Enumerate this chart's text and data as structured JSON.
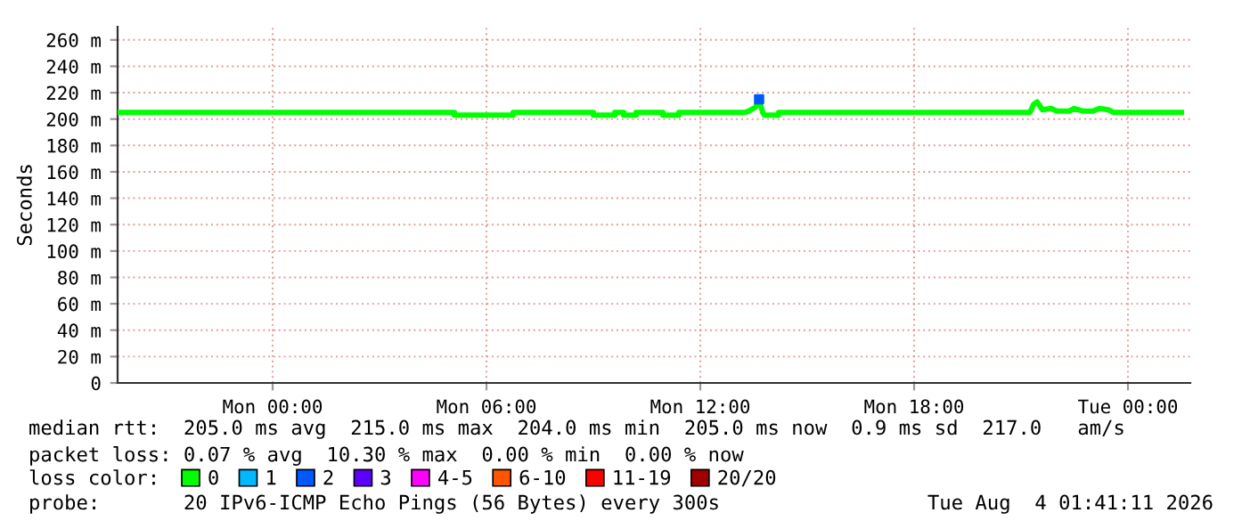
{
  "chart_data": {
    "type": "line",
    "ylabel": "Seconds",
    "x": [
      "2026-08-02T19:39",
      "2026-08-03T05:06",
      "2026-08-03T05:06",
      "2026-08-03T06:45",
      "2026-08-03T06:45",
      "2026-08-03T09:00",
      "2026-08-03T09:00",
      "2026-08-03T09:36",
      "2026-08-03T09:36",
      "2026-08-03T09:51",
      "2026-08-03T09:51",
      "2026-08-03T10:12",
      "2026-08-03T10:12",
      "2026-08-03T10:57",
      "2026-08-03T10:57",
      "2026-08-03T11:24",
      "2026-08-03T11:24",
      "2026-08-03T13:15",
      "2026-08-03T13:21",
      "2026-08-03T13:33",
      "2026-08-03T13:39",
      "2026-08-03T13:45",
      "2026-08-03T13:48",
      "2026-08-03T14:12",
      "2026-08-03T14:12",
      "2026-08-03T21:15",
      "2026-08-03T21:21",
      "2026-08-03T21:27",
      "2026-08-03T21:36",
      "2026-08-03T21:51",
      "2026-08-03T22:00",
      "2026-08-03T22:21",
      "2026-08-03T22:30",
      "2026-08-03T22:45",
      "2026-08-03T23:00",
      "2026-08-03T23:12",
      "2026-08-03T23:27",
      "2026-08-03T23:36",
      "2026-08-04T01:30"
    ],
    "series": [
      {
        "name": "0",
        "color": "#00ff00",
        "values": [
          205,
          205,
          203,
          203,
          205,
          205,
          203,
          203,
          205,
          205,
          203,
          203,
          205,
          205,
          203,
          203,
          205,
          205,
          206,
          209,
          215,
          205,
          203,
          203,
          205,
          205,
          211,
          213,
          207,
          208,
          206,
          206,
          208,
          206,
          206,
          208,
          207,
          205,
          205
        ]
      },
      {
        "name": "1",
        "color": "#00b8ff",
        "type": "scatter",
        "values": [
          null,
          null,
          null,
          null,
          null,
          null,
          null,
          null,
          null,
          null,
          null,
          null,
          null,
          null,
          null,
          null,
          null,
          null,
          null,
          null,
          null,
          null,
          null,
          null,
          null,
          null,
          null,
          null,
          null,
          null,
          null,
          null,
          null,
          null,
          null,
          null,
          null,
          null,
          null
        ]
      },
      {
        "name": "2",
        "color": "#0059ff",
        "type": "scatter",
        "marker": "square",
        "values": [
          null,
          null,
          null,
          null,
          null,
          null,
          null,
          null,
          null,
          null,
          null,
          null,
          null,
          null,
          null,
          null,
          null,
          null,
          null,
          null,
          215,
          null,
          null,
          null,
          null,
          null,
          null,
          null,
          null,
          null,
          null,
          null,
          null,
          null,
          null,
          null,
          null,
          null,
          null
        ]
      },
      {
        "name": "3",
        "color": "#5e00ff",
        "type": "scatter",
        "values": [
          null,
          null,
          null,
          null,
          null,
          null,
          null,
          null,
          null,
          null,
          null,
          null,
          null,
          null,
          null,
          null,
          null,
          null,
          null,
          null,
          null,
          null,
          null,
          null,
          null,
          null,
          null,
          null,
          null,
          null,
          null,
          null,
          null,
          null,
          null,
          null,
          null,
          null,
          null
        ]
      },
      {
        "name": "4-5",
        "color": "#ff00ff",
        "type": "scatter",
        "values": [
          null,
          null,
          null,
          null,
          null,
          null,
          null,
          null,
          null,
          null,
          null,
          null,
          null,
          null,
          null,
          null,
          null,
          null,
          null,
          null,
          null,
          null,
          null,
          null,
          null,
          null,
          null,
          null,
          null,
          null,
          null,
          null,
          null,
          null,
          null,
          null,
          null,
          null,
          null
        ]
      },
      {
        "name": "6-10",
        "color": "#ff5500",
        "type": "scatter",
        "values": [
          null,
          null,
          null,
          null,
          null,
          null,
          null,
          null,
          null,
          null,
          null,
          null,
          null,
          null,
          null,
          null,
          null,
          null,
          null,
          null,
          null,
          null,
          null,
          null,
          null,
          null,
          null,
          null,
          null,
          null,
          null,
          null,
          null,
          null,
          null,
          null,
          null,
          null,
          null
        ]
      },
      {
        "name": "11-19",
        "color": "#ff0000",
        "type": "scatter",
        "values": [
          null,
          null,
          null,
          null,
          null,
          null,
          null,
          null,
          null,
          null,
          null,
          null,
          null,
          null,
          null,
          null,
          null,
          null,
          null,
          null,
          null,
          null,
          null,
          null,
          null,
          null,
          null,
          null,
          null,
          null,
          null,
          null,
          null,
          null,
          null,
          null,
          null,
          null,
          null
        ]
      },
      {
        "name": "20/20",
        "color": "#a10000",
        "type": "scatter",
        "values": [
          null,
          null,
          null,
          null,
          null,
          null,
          null,
          null,
          null,
          null,
          null,
          null,
          null,
          null,
          null,
          null,
          null,
          null,
          null,
          null,
          null,
          null,
          null,
          null,
          null,
          null,
          null,
          null,
          null,
          null,
          null,
          null,
          null,
          null,
          null,
          null,
          null,
          null,
          null
        ]
      }
    ],
    "legend": "bottom",
    "legend_title": "loss color:",
    "xlim": [
      "2026-08-02T19:39",
      "2026-08-04T01:45"
    ],
    "xticks": [
      {
        "value": "2026-08-03T00:00",
        "label": "Mon 00:00"
      },
      {
        "value": "2026-08-03T06:00",
        "label": "Mon 06:00"
      },
      {
        "value": "2026-08-03T12:00",
        "label": "Mon 12:00"
      },
      {
        "value": "2026-08-03T18:00",
        "label": "Mon 18:00"
      },
      {
        "value": "2026-08-04T00:00",
        "label": "Tue 00:00"
      }
    ],
    "ylim": [
      0,
      270
    ],
    "yticks": [
      0,
      {
        "value": 20,
        "label": "20 m"
      },
      {
        "value": 40,
        "label": "40 m"
      },
      {
        "value": 60,
        "label": "60 m"
      },
      {
        "value": 80,
        "label": "80 m"
      },
      {
        "value": 100,
        "label": "100 m"
      },
      {
        "value": 120,
        "label": "120 m"
      },
      {
        "value": 140,
        "label": "140 m"
      },
      {
        "value": 160,
        "label": "160 m"
      },
      {
        "value": 180,
        "label": "180 m"
      },
      {
        "value": 200,
        "label": "200 m"
      },
      {
        "value": 220,
        "label": "220 m"
      },
      {
        "value": 240,
        "label": "240 m"
      },
      {
        "value": 260,
        "label": "260 m"
      }
    ],
    "grid": true,
    "annotations": [
      "median rtt:  205.0 ms avg  215.0 ms max  204.0 ms min  205.0 ms now  0.9 ms sd  217.0   am/s",
      "packet loss: 0.07 % avg  10.30 % max  0.00 % min  0.00 % now",
      "probe:       20 IPv6-ICMP Echo Pings (56 Bytes) every 300s",
      "Tue Aug  4 01:41:11 2026"
    ]
  }
}
